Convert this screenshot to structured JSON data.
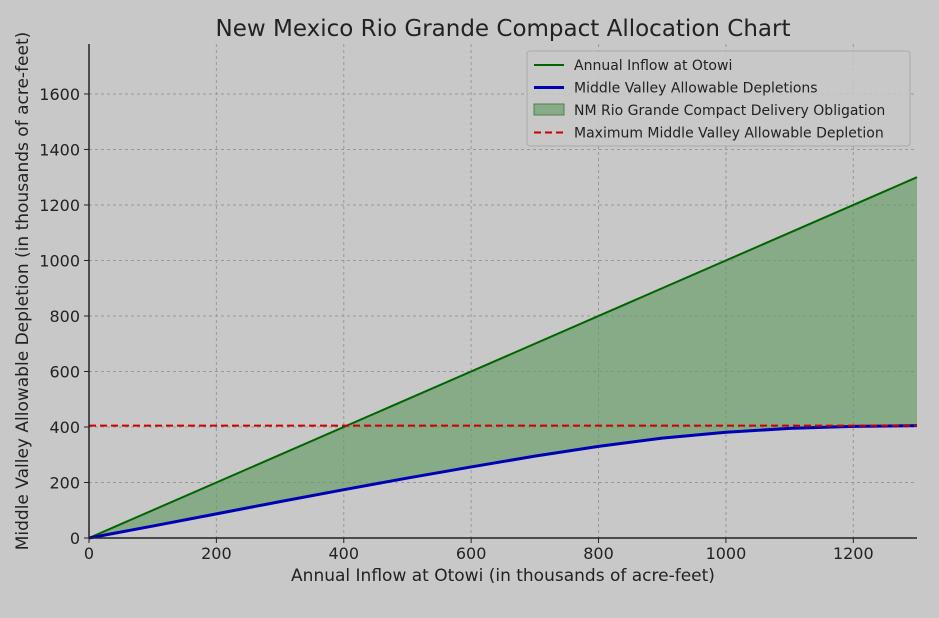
{
  "chart_data": {
    "type": "line",
    "title": "New Mexico Rio Grande Compact Allocation Chart",
    "xlabel": "Annual Inflow at Otowi (in thousands of acre-feet)",
    "ylabel": "Middle Valley Allowable Depletion (in thousands of acre-feet)",
    "xlim": [
      0,
      1300
    ],
    "ylim": [
      0,
      1780
    ],
    "x_ticks": [
      0,
      200,
      400,
      600,
      800,
      1000,
      1200
    ],
    "y_ticks": [
      0,
      200,
      400,
      600,
      800,
      1000,
      1200,
      1400,
      1600
    ],
    "grid": true,
    "legend_position": "top-right",
    "series": [
      {
        "name": "Annual Inflow at Otowi",
        "kind": "line",
        "color": "#006400",
        "x": [
          0,
          1300
        ],
        "y": [
          0,
          1300
        ]
      },
      {
        "name": "Middle Valley Allowable Depletions",
        "kind": "line",
        "color": "#0000b4",
        "x": [
          0,
          100,
          200,
          300,
          400,
          500,
          600,
          700,
          800,
          900,
          1000,
          1100,
          1200,
          1300
        ],
        "y": [
          0,
          43,
          87,
          131,
          174,
          216,
          256,
          295,
          330,
          360,
          381,
          395,
          402,
          405
        ]
      },
      {
        "name": "NM Rio Grande Compact Delivery Obligation",
        "kind": "fill_between",
        "color": "#5f9a5f",
        "between": [
          "Annual Inflow at Otowi",
          "Middle Valley Allowable Depletions"
        ]
      },
      {
        "name": "Maximum Middle Valley Allowable Depletion",
        "kind": "hline",
        "color": "#cc0000",
        "y": 405
      }
    ]
  }
}
